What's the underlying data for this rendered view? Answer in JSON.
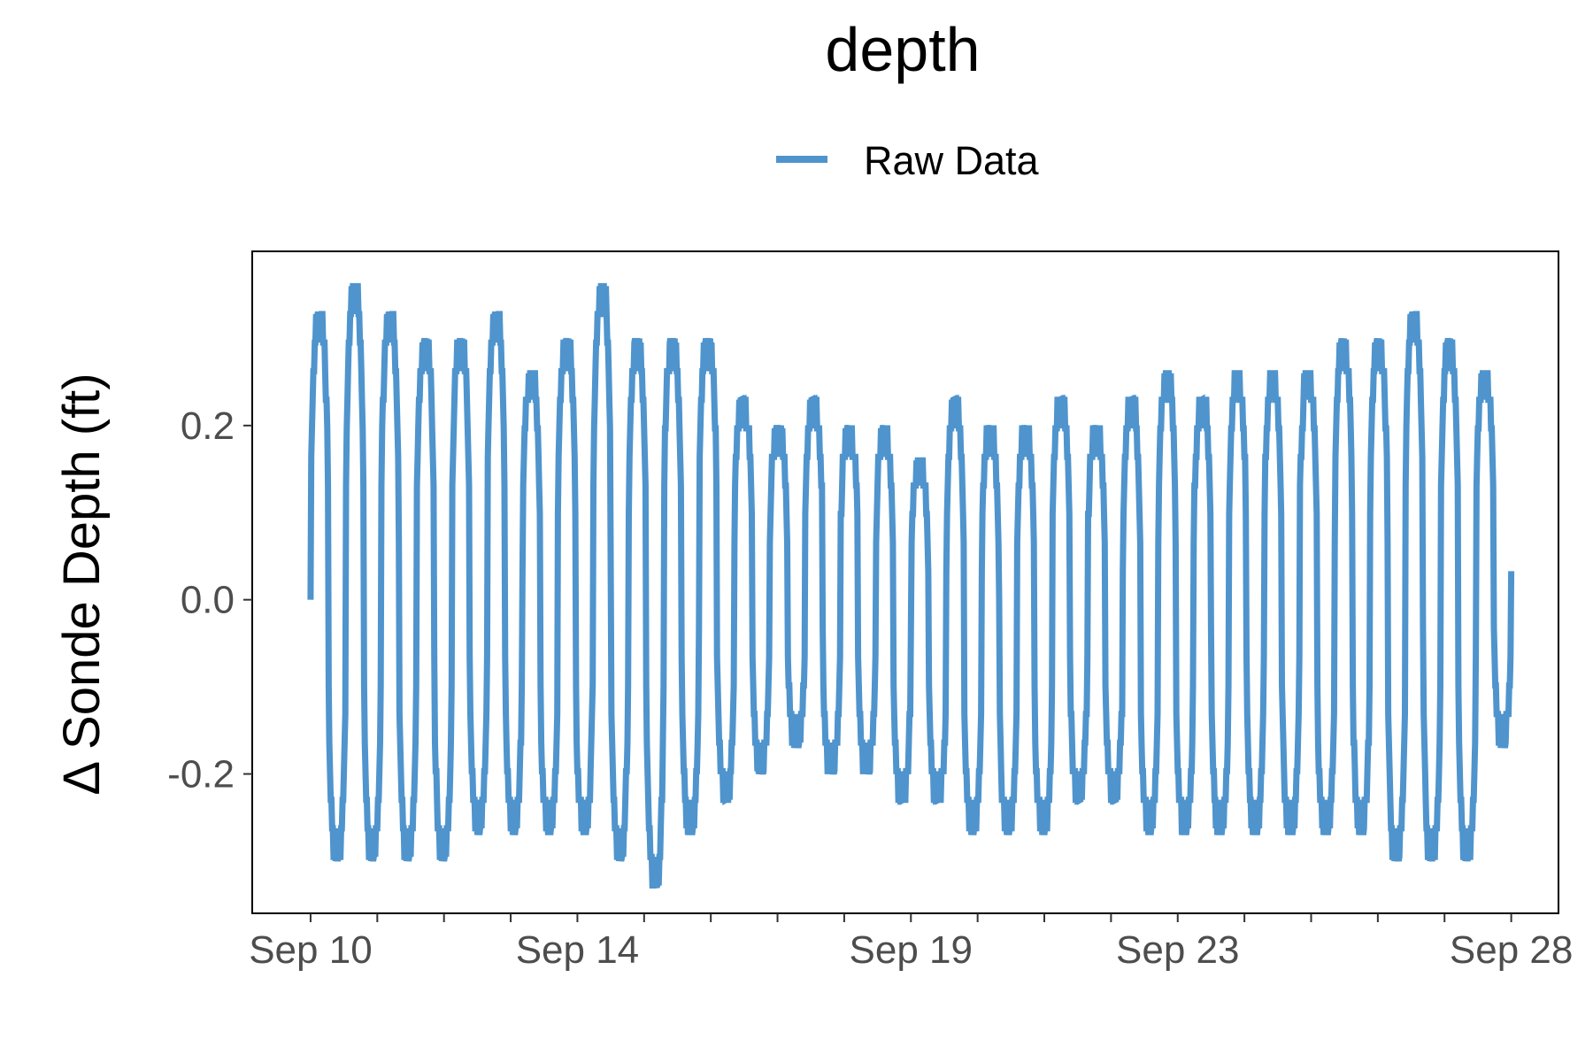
{
  "chart_data": {
    "type": "line",
    "title": "depth",
    "xlabel": "",
    "ylabel": "Δ Sonde Depth (ft)",
    "x_start": "2020-09-10",
    "x_end": "2020-09-28",
    "xlim": [
      "2020-09-09T03:00",
      "2020-09-28T17:00"
    ],
    "ylim": [
      -0.36,
      0.4
    ],
    "x_ticks": [
      {
        "date": "2020-09-10",
        "label": "Sep 10"
      },
      {
        "date": "2020-09-14",
        "label": "Sep 14"
      },
      {
        "date": "2020-09-19",
        "label": "Sep 19"
      },
      {
        "date": "2020-09-23",
        "label": "Sep 23"
      },
      {
        "date": "2020-09-28",
        "label": "Sep 28"
      }
    ],
    "y_ticks": [
      {
        "value": -0.2,
        "label": "-0.2"
      },
      {
        "value": 0.0,
        "label": "0.0"
      },
      {
        "value": 0.2,
        "label": "0.2"
      }
    ],
    "grid": false,
    "legend_position": "top",
    "series": [
      {
        "name": "Raw Data",
        "color": "#4f94cd",
        "tidal_cycles": [
          {
            "high": 0.33,
            "low": -0.3
          },
          {
            "high": 0.36,
            "low": -0.3
          },
          {
            "high": 0.33,
            "low": -0.3
          },
          {
            "high": 0.3,
            "low": -0.3
          },
          {
            "high": 0.3,
            "low": -0.27
          },
          {
            "high": 0.33,
            "low": -0.27
          },
          {
            "high": 0.26,
            "low": -0.27
          },
          {
            "high": 0.3,
            "low": -0.27
          },
          {
            "high": 0.36,
            "low": -0.3
          },
          {
            "high": 0.3,
            "low": -0.33
          },
          {
            "high": 0.3,
            "low": -0.27
          },
          {
            "high": 0.3,
            "low": -0.23
          },
          {
            "high": 0.23,
            "low": -0.2
          },
          {
            "high": 0.2,
            "low": -0.17
          },
          {
            "high": 0.23,
            "low": -0.2
          },
          {
            "high": 0.2,
            "low": -0.2
          },
          {
            "high": 0.2,
            "low": -0.23
          },
          {
            "high": 0.16,
            "low": -0.23
          },
          {
            "high": 0.23,
            "low": -0.27
          },
          {
            "high": 0.2,
            "low": -0.27
          },
          {
            "high": 0.2,
            "low": -0.27
          },
          {
            "high": 0.23,
            "low": -0.23
          },
          {
            "high": 0.2,
            "low": -0.23
          },
          {
            "high": 0.23,
            "low": -0.27
          },
          {
            "high": 0.26,
            "low": -0.27
          },
          {
            "high": 0.23,
            "low": -0.27
          },
          {
            "high": 0.26,
            "low": -0.27
          },
          {
            "high": 0.26,
            "low": -0.27
          },
          {
            "high": 0.26,
            "low": -0.27
          },
          {
            "high": 0.3,
            "low": -0.27
          },
          {
            "high": 0.3,
            "low": -0.3
          },
          {
            "high": 0.33,
            "low": -0.3
          },
          {
            "high": 0.3,
            "low": -0.3
          },
          {
            "high": 0.26,
            "low": -0.17
          }
        ]
      }
    ]
  }
}
